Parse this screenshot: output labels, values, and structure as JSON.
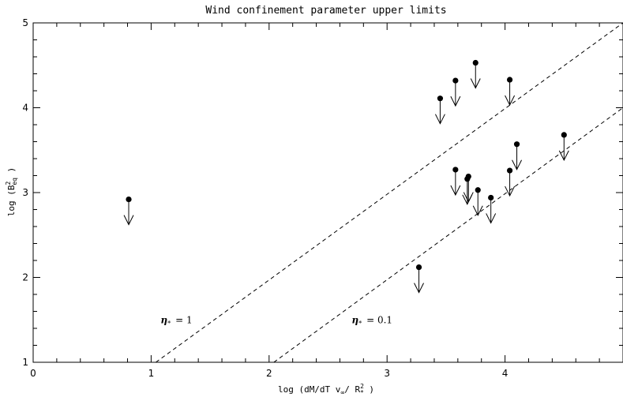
{
  "chart_data": {
    "type": "scatter",
    "title": "Wind confinement parameter upper limits",
    "xlabel_parts": [
      "log (dM/dT v",
      "∞",
      "/ R",
      "2",
      "*",
      " )"
    ],
    "ylabel_parts": [
      "log (B",
      "2",
      "eq",
      " )"
    ],
    "xlim": [
      0,
      5
    ],
    "ylim": [
      1,
      5
    ],
    "xticks": [
      0,
      1,
      2,
      3,
      4
    ],
    "yticks": [
      1,
      2,
      3,
      4,
      5
    ],
    "grid": false,
    "points_upper_limits": [
      {
        "x": 0.81,
        "y": 2.92
      },
      {
        "x": 3.27,
        "y": 2.12
      },
      {
        "x": 3.45,
        "y": 4.11
      },
      {
        "x": 3.58,
        "y": 4.32
      },
      {
        "x": 3.58,
        "y": 3.27
      },
      {
        "x": 3.68,
        "y": 3.16
      },
      {
        "x": 3.69,
        "y": 3.19
      },
      {
        "x": 3.75,
        "y": 4.53
      },
      {
        "x": 3.77,
        "y": 3.03
      },
      {
        "x": 3.88,
        "y": 2.94
      },
      {
        "x": 4.04,
        "y": 4.33
      },
      {
        "x": 4.04,
        "y": 3.26
      },
      {
        "x": 4.1,
        "y": 3.57
      },
      {
        "x": 4.5,
        "y": 3.68
      }
    ],
    "lines": [
      {
        "label_symbol": "η",
        "label_sub": "*",
        "label_text": "= 1",
        "x": [
          1.04,
          5.0
        ],
        "y": [
          1.0,
          5.0
        ],
        "style": "dashed"
      },
      {
        "label_symbol": "η",
        "label_sub": "*",
        "label_text": "= 0.1",
        "x": [
          2.04,
          5.0
        ],
        "y": [
          1.0,
          4.0
        ],
        "style": "dashed"
      }
    ]
  }
}
